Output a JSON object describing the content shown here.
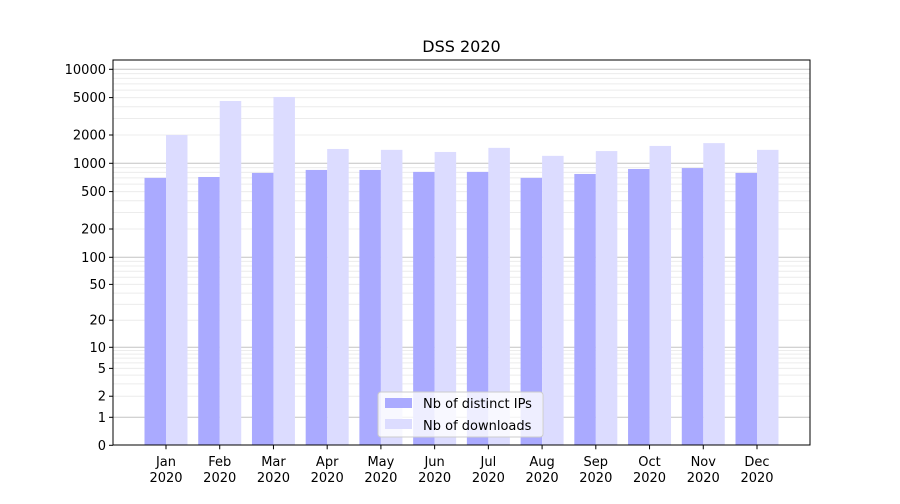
{
  "chart_data": {
    "type": "bar",
    "title": "DSS 2020",
    "xlabel": "",
    "ylabel": "",
    "yscale": "symlog",
    "ylim": [
      0,
      12000
    ],
    "grid": true,
    "legend_position": "bottom-center",
    "categories": [
      {
        "month": "Jan",
        "year": "2020"
      },
      {
        "month": "Feb",
        "year": "2020"
      },
      {
        "month": "Mar",
        "year": "2020"
      },
      {
        "month": "Apr",
        "year": "2020"
      },
      {
        "month": "May",
        "year": "2020"
      },
      {
        "month": "Jun",
        "year": "2020"
      },
      {
        "month": "Jul",
        "year": "2020"
      },
      {
        "month": "Aug",
        "year": "2020"
      },
      {
        "month": "Sep",
        "year": "2020"
      },
      {
        "month": "Oct",
        "year": "2020"
      },
      {
        "month": "Nov",
        "year": "2020"
      },
      {
        "month": "Dec",
        "year": "2020"
      }
    ],
    "yticks": [
      "0",
      "1",
      "2",
      "5",
      "10",
      "20",
      "50",
      "100",
      "200",
      "500",
      "1000",
      "2000",
      "5000",
      "10000"
    ],
    "series": [
      {
        "name": "Nb of distinct IPs",
        "color": "#aaaaff",
        "values": [
          700,
          715,
          790,
          850,
          850,
          810,
          810,
          700,
          770,
          870,
          890,
          790
        ]
      },
      {
        "name": "Nb of downloads",
        "color": "#dcdcff",
        "values": [
          2000,
          4600,
          5080,
          1420,
          1390,
          1320,
          1460,
          1200,
          1350,
          1530,
          1640,
          1390
        ]
      }
    ]
  }
}
